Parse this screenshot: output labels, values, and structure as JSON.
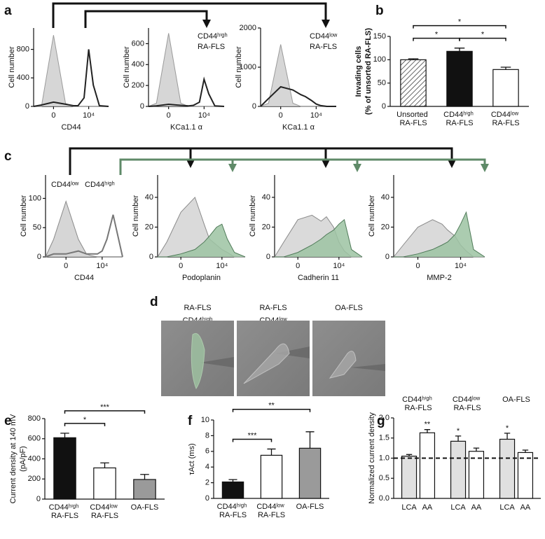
{
  "panel_labels": [
    "a",
    "b",
    "c",
    "d",
    "e",
    "f",
    "g"
  ],
  "panel_d": {
    "images": [
      {
        "label": [
          "RA-FLS",
          "CD44ʰⁱᵍʰ"
        ]
      },
      {
        "label": [
          "RA-FLS",
          "CD44ˡᵒʷ"
        ]
      },
      {
        "label": [
          "OA-FLS"
        ]
      }
    ]
  },
  "chart_data": [
    {
      "type": "area",
      "xlabel": "CD44",
      "ylabel": "Cell number",
      "xscale": "asinh",
      "x": [
        -1000,
        -300,
        0,
        300,
        1000,
        2000,
        5000,
        10000,
        20000,
        50000,
        200000
      ],
      "xlim": [
        -1000,
        200000
      ],
      "xticks": [
        {
          "value": 0,
          "label": "0"
        },
        {
          "value": 10000,
          "label": "10⁴"
        }
      ],
      "ylim": [
        0,
        1100
      ],
      "yticks": [
        0,
        400,
        800
      ],
      "series": [
        {
          "color": "#9a9a9a",
          "fill": "#cfcfcf",
          "values": [
            0,
            0,
            1000,
            40,
            0,
            0,
            0,
            0,
            0,
            0,
            0
          ]
        },
        {
          "color": "#222222",
          "fill": null,
          "values": [
            0,
            20,
            60,
            30,
            10,
            10,
            120,
            800,
            300,
            10,
            0
          ]
        }
      ]
    },
    {
      "type": "area",
      "xlabel": "KCa1.1 α",
      "ylabel": "Cell number",
      "xscale": "asinh",
      "x": [
        -1000,
        -300,
        0,
        300,
        1000,
        2000,
        5000,
        10000,
        20000,
        50000,
        200000
      ],
      "xlim": [
        -1000,
        200000
      ],
      "xticks": [
        {
          "value": 0,
          "label": "0"
        },
        {
          "value": 10000,
          "label": "10⁴"
        }
      ],
      "ylim": [
        0,
        750
      ],
      "yticks": [
        0,
        200,
        400,
        600
      ],
      "annotation": [
        "CD44ʰⁱᵍʰ",
        "RA-FLS"
      ],
      "series": [
        {
          "color": "#9a9a9a",
          "fill": "#cfcfcf",
          "values": [
            0,
            30,
            700,
            30,
            0,
            0,
            0,
            0,
            0,
            0,
            0
          ]
        },
        {
          "color": "#222222",
          "fill": null,
          "values": [
            0,
            5,
            20,
            10,
            5,
            10,
            40,
            260,
            120,
            5,
            0
          ]
        }
      ]
    },
    {
      "type": "area",
      "xlabel": "KCa1.1 α",
      "ylabel": "Cell number",
      "xscale": "asinh",
      "x": [
        -1000,
        -300,
        0,
        300,
        1000,
        2000,
        5000,
        10000,
        20000,
        50000,
        200000
      ],
      "xlim": [
        -1000,
        200000
      ],
      "xticks": [
        {
          "value": 0,
          "label": "0"
        },
        {
          "value": 10000,
          "label": "10⁴"
        }
      ],
      "ylim": [
        0,
        2000
      ],
      "yticks": [
        0,
        1000,
        2000
      ],
      "annotation": [
        "CD44ˡᵒʷ",
        "RA-FLS"
      ],
      "series": [
        {
          "color": "#9a9a9a",
          "fill": "#cfcfcf",
          "values": [
            0,
            80,
            1580,
            80,
            0,
            0,
            0,
            0,
            0,
            0,
            0
          ]
        },
        {
          "color": "#222222",
          "fill": null,
          "values": [
            0,
            200,
            500,
            420,
            300,
            250,
            150,
            60,
            20,
            0,
            0
          ]
        }
      ]
    },
    {
      "type": "bar",
      "ylabel": [
        "Invading cells",
        "(% of unsorted RA-FLS)"
      ],
      "categories": [
        "Unsorted RA-FLS",
        "CD44ʰⁱᵍʰ RA-FLS",
        "CD44ˡᵒʷ RA-FLS"
      ],
      "values": [
        100,
        118,
        79
      ],
      "errors": [
        2,
        7,
        5
      ],
      "colors": [
        "#ffffff",
        "#111111",
        "#ffffff"
      ],
      "hatch": [
        true,
        false,
        false
      ],
      "ylim": [
        0,
        150
      ],
      "yticks": [
        0,
        50,
        100,
        150
      ],
      "annotations": [
        {
          "text": "*",
          "between": [
            0,
            2
          ]
        },
        {
          "text": "*",
          "between": [
            0,
            1
          ]
        },
        {
          "text": "*",
          "between": [
            1,
            2
          ]
        }
      ]
    },
    {
      "type": "area",
      "xlabel": "CD44",
      "ylabel": "Cell number",
      "xscale": "asinh",
      "x": [
        -1000,
        -300,
        0,
        300,
        1000,
        2000,
        5000,
        10000,
        20000,
        50000,
        200000
      ],
      "xlim": [
        -1000,
        200000
      ],
      "xticks": [
        {
          "value": 0,
          "label": "0"
        },
        {
          "value": 10000,
          "label": "10⁴"
        }
      ],
      "ylim": [
        0,
        140
      ],
      "yticks": [
        0,
        50,
        100
      ],
      "series": [
        {
          "name": "CD44ˡᵒʷ",
          "label_color": "#111111",
          "color": "#8a8a8a",
          "fill": "#cfcfcf",
          "values": [
            0,
            30,
            95,
            30,
            5,
            2,
            0,
            0,
            0,
            0,
            0
          ]
        },
        {
          "name": "CD44ʰⁱᵍʰ",
          "label_color": "#4f8a5b",
          "color": "#777777",
          "fill": null,
          "values": [
            0,
            5,
            5,
            10,
            5,
            5,
            5,
            10,
            30,
            72,
            0
          ]
        }
      ]
    },
    {
      "type": "area",
      "xlabel": "Podoplanin",
      "ylabel": "Cell number",
      "xscale": "asinh",
      "x": [
        -1000,
        -300,
        0,
        300,
        1000,
        2000,
        5000,
        10000,
        20000,
        50000,
        200000
      ],
      "xlim": [
        -1000,
        200000
      ],
      "xticks": [
        {
          "value": 0,
          "label": "0"
        },
        {
          "value": 10000,
          "label": "10⁴"
        }
      ],
      "ylim": [
        0,
        55
      ],
      "yticks": [
        0,
        20,
        40
      ],
      "series": [
        {
          "color": "#8a8a8a",
          "fill": "#d3d3d3",
          "values": [
            0,
            10,
            30,
            40,
            22,
            12,
            8,
            5,
            3,
            0,
            0
          ]
        },
        {
          "color": "#4f7a58",
          "fill": "#9cc3a2",
          "values": [
            0,
            0,
            2,
            5,
            10,
            14,
            20,
            22,
            12,
            3,
            0
          ]
        }
      ]
    },
    {
      "type": "area",
      "xlabel": "Cadherin 11",
      "ylabel": "Cell number",
      "xscale": "asinh",
      "x": [
        -1000,
        -300,
        0,
        300,
        1000,
        2000,
        5000,
        10000,
        20000,
        50000,
        200000
      ],
      "xlim": [
        -1000,
        200000
      ],
      "xticks": [
        {
          "value": 0,
          "label": "0"
        },
        {
          "value": 10000,
          "label": "10⁴"
        }
      ],
      "ylim": [
        0,
        55
      ],
      "yticks": [
        0,
        20,
        40
      ],
      "series": [
        {
          "color": "#8a8a8a",
          "fill": "#d3d3d3",
          "values": [
            0,
            10,
            25,
            28,
            24,
            27,
            20,
            10,
            4,
            0,
            0
          ]
        },
        {
          "color": "#4f7a58",
          "fill": "#9cc3a2",
          "values": [
            0,
            0,
            3,
            8,
            12,
            15,
            18,
            22,
            25,
            5,
            0
          ]
        }
      ]
    },
    {
      "type": "area",
      "xlabel": "MMP-2",
      "ylabel": "Cell number",
      "xscale": "asinh",
      "x": [
        -1000,
        -300,
        0,
        300,
        1000,
        2000,
        5000,
        10000,
        20000,
        50000,
        200000
      ],
      "xlim": [
        -1000,
        200000
      ],
      "xticks": [
        {
          "value": 0,
          "label": "0"
        },
        {
          "value": 10000,
          "label": "10⁴"
        }
      ],
      "ylim": [
        0,
        55
      ],
      "yticks": [
        0,
        20,
        40
      ],
      "series": [
        {
          "color": "#8a8a8a",
          "fill": "#d3d3d3",
          "values": [
            0,
            8,
            20,
            25,
            22,
            18,
            14,
            8,
            4,
            0,
            0
          ]
        },
        {
          "color": "#4f7a58",
          "fill": "#9cc3a2",
          "values": [
            0,
            0,
            2,
            5,
            8,
            10,
            15,
            22,
            30,
            5,
            0
          ]
        }
      ]
    },
    {
      "type": "bar",
      "ylabel": [
        "Current density at 140 mV",
        "(pA/pF)"
      ],
      "categories": [
        "CD44ʰⁱᵍʰ RA-FLS",
        "CD44ˡᵒʷ RA-FLS",
        "OA-FLS"
      ],
      "values": [
        610,
        310,
        195
      ],
      "errors": [
        45,
        50,
        50
      ],
      "colors": [
        "#111111",
        "#ffffff",
        "#9a9a9a"
      ],
      "ylim": [
        0,
        800
      ],
      "yticks": [
        0,
        200,
        400,
        600,
        800
      ],
      "annotations": [
        {
          "text": "*",
          "between": [
            0,
            1
          ]
        },
        {
          "text": "***",
          "between": [
            0,
            2
          ]
        }
      ]
    },
    {
      "type": "bar",
      "ylabel": "τAct (ms)",
      "categories": [
        "CD44ʰⁱᵍʰ RA-FLS",
        "CD44ˡᵒʷ RA-FLS",
        "OA-FLS"
      ],
      "values": [
        2.1,
        5.5,
        6.4
      ],
      "errors": [
        0.3,
        0.8,
        2.1
      ],
      "colors": [
        "#111111",
        "#ffffff",
        "#9a9a9a"
      ],
      "ylim": [
        0,
        10
      ],
      "yticks": [
        0,
        2,
        4,
        6,
        8,
        10
      ],
      "annotations": [
        {
          "text": "***",
          "between": [
            0,
            1
          ]
        },
        {
          "text": "**",
          "between": [
            0,
            2
          ]
        }
      ]
    },
    {
      "type": "grouped_bar",
      "ylabel": "Normalized current density",
      "categories": [
        "CD44ʰⁱᵍʰ RA-FLS",
        "CD44ˡᵒʷ RA-FLS",
        "OA-FLS"
      ],
      "series": [
        {
          "name": "LCA",
          "color": "#e0e0e0",
          "values": [
            1.05,
            1.42,
            1.47
          ],
          "errors": [
            0.04,
            0.13,
            0.15
          ]
        },
        {
          "name": "AA",
          "color": "#ffffff",
          "values": [
            1.63,
            1.17,
            1.14
          ],
          "errors": [
            0.08,
            0.08,
            0.06
          ]
        }
      ],
      "ylim": [
        0,
        2
      ],
      "yticks": [
        {
          "value": 0,
          "label": "0.0"
        },
        {
          "value": 0.5,
          "label": "0.5"
        },
        {
          "value": 1,
          "label": "1.0"
        },
        {
          "value": 1.5,
          "label": "1.5"
        },
        {
          "value": 2,
          "label": "2.0"
        }
      ],
      "hline": 1,
      "annotations": [
        {
          "text": "**",
          "series": 1,
          "index": 0
        },
        {
          "text": "*",
          "series": 0,
          "index": 1
        },
        {
          "text": "*",
          "series": 0,
          "index": 2
        }
      ]
    }
  ]
}
